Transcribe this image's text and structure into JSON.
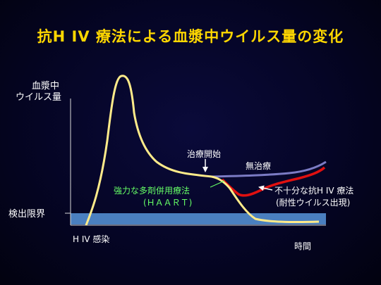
{
  "title": "抗H IV 療法による血漿中ウイルス量の変化",
  "chart_data": {
    "type": "line",
    "ylabel": [
      "血漿中",
      "ウイルス量"
    ],
    "detection_limit_label": "検出限界",
    "x_start_label": "H IV 感染",
    "xlabel": "時間",
    "annotations": {
      "treatment_start": "治療開始",
      "no_treatment": "無治療",
      "haart": [
        "強力な多剤併用療法",
        "(ＨＡＡＲＴ)"
      ],
      "insufficient": [
        "不十分な抗H IV 療法",
        "(耐性ウイルス出現)"
      ]
    },
    "series": [
      {
        "name": "無治療",
        "color": "#7b7bc4",
        "x": [
          0,
          0.3,
          0.6,
          0.85,
          1.0
        ],
        "y": [
          0.47,
          0.48,
          0.5,
          0.55,
          0.64
        ]
      },
      {
        "name": "不十分な抗H IV 療法",
        "color": "#e01010",
        "x": [
          0,
          0.05,
          0.1,
          0.15,
          0.25,
          0.35,
          0.5,
          0.65,
          0.8,
          0.9,
          1.0
        ],
        "y": [
          0.47,
          0.36,
          0.15,
          0.0,
          0.05,
          0.14,
          0.22,
          0.27,
          0.34,
          0.4,
          0.48
        ]
      },
      {
        "name": "強力な多剤併用療法 (ＨＡＡＲＴ)",
        "color": "#ffeb8a",
        "x": [
          0,
          0.05,
          0.15,
          0.3,
          0.5,
          0.7,
          1.0
        ],
        "y": [
          0.47,
          0.3,
          0.05,
          -0.12,
          -0.18,
          -0.19,
          -0.19
        ]
      }
    ]
  }
}
